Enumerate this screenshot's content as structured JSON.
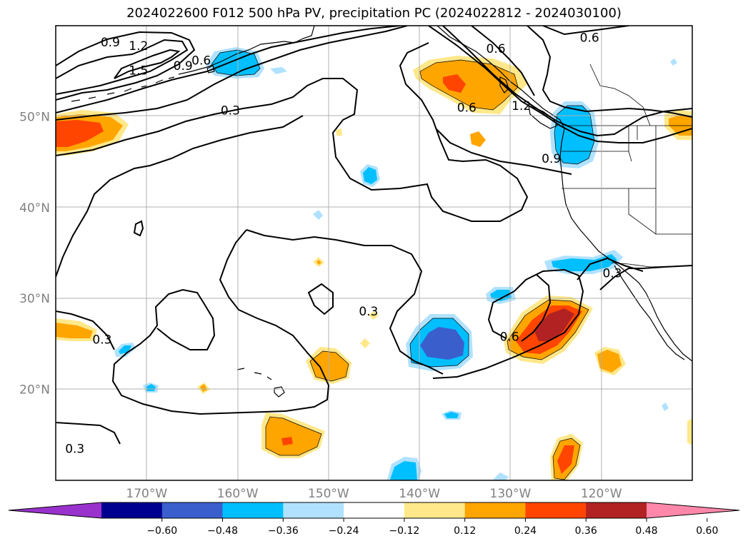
{
  "title": "2024022600 F012 500 hPa PV, precipitation PC (2024022812 - 2024030100)",
  "map": {
    "lon_range": [
      -180,
      -110
    ],
    "lat_range": [
      10,
      60
    ],
    "lat_ticks": [
      {
        "lat": 50,
        "label": "50°N"
      },
      {
        "lat": 40,
        "label": "40°N"
      },
      {
        "lat": 30,
        "label": "30°N"
      },
      {
        "lat": 20,
        "label": "20°N"
      }
    ],
    "lon_ticks": [
      {
        "lon": -170,
        "label": "170°W"
      },
      {
        "lon": -160,
        "label": "160°W"
      },
      {
        "lon": -150,
        "label": "150°W"
      },
      {
        "lon": -140,
        "label": "140°W"
      },
      {
        "lon": -130,
        "label": "130°W"
      },
      {
        "lon": -120,
        "label": "120°W"
      }
    ],
    "contour_labels": [
      {
        "text": "0.9",
        "lon": -174,
        "lat": 58.2
      },
      {
        "text": "1.2",
        "lon": -170.9,
        "lat": 57.8
      },
      {
        "text": "1.5",
        "lon": -170.9,
        "lat": 55.1
      },
      {
        "text": "0.9",
        "lon": -166,
        "lat": 55.6
      },
      {
        "text": "0.6",
        "lon": -164,
        "lat": 56.2
      },
      {
        "text": "0.3",
        "lon": -160.8,
        "lat": 50.7
      },
      {
        "text": "0.6",
        "lon": -131.6,
        "lat": 57.5
      },
      {
        "text": "0.6",
        "lon": -134.8,
        "lat": 51.0
      },
      {
        "text": "1.2",
        "lon": -128.8,
        "lat": 51.2
      },
      {
        "text": "0.9",
        "lon": -125.5,
        "lat": 45.4
      },
      {
        "text": "0.6",
        "lon": -121.3,
        "lat": 58.7
      },
      {
        "text": "0.3",
        "lon": -174.9,
        "lat": 25.5
      },
      {
        "text": "0.3",
        "lon": -145.6,
        "lat": 28.6
      },
      {
        "text": "0.6",
        "lon": -130.1,
        "lat": 25.8
      },
      {
        "text": "0.3",
        "lon": -177.9,
        "lat": 13.5
      },
      {
        "text": "0.3",
        "lon": -118.8,
        "lat": 32.8
      }
    ]
  },
  "colorbar": {
    "ticks": [
      "−0.60",
      "−0.48",
      "−0.36",
      "−0.24",
      "−0.12",
      "0.12",
      "0.24",
      "0.36",
      "0.48",
      "0.60"
    ],
    "colors": [
      "#9932cc",
      "#000090",
      "#3a5fcd",
      "#00bfff",
      "#b0e2ff",
      "#ffffff",
      "#ffe88a",
      "#ffa500",
      "#ff4500",
      "#b22222",
      "#ff88aa"
    ]
  }
}
